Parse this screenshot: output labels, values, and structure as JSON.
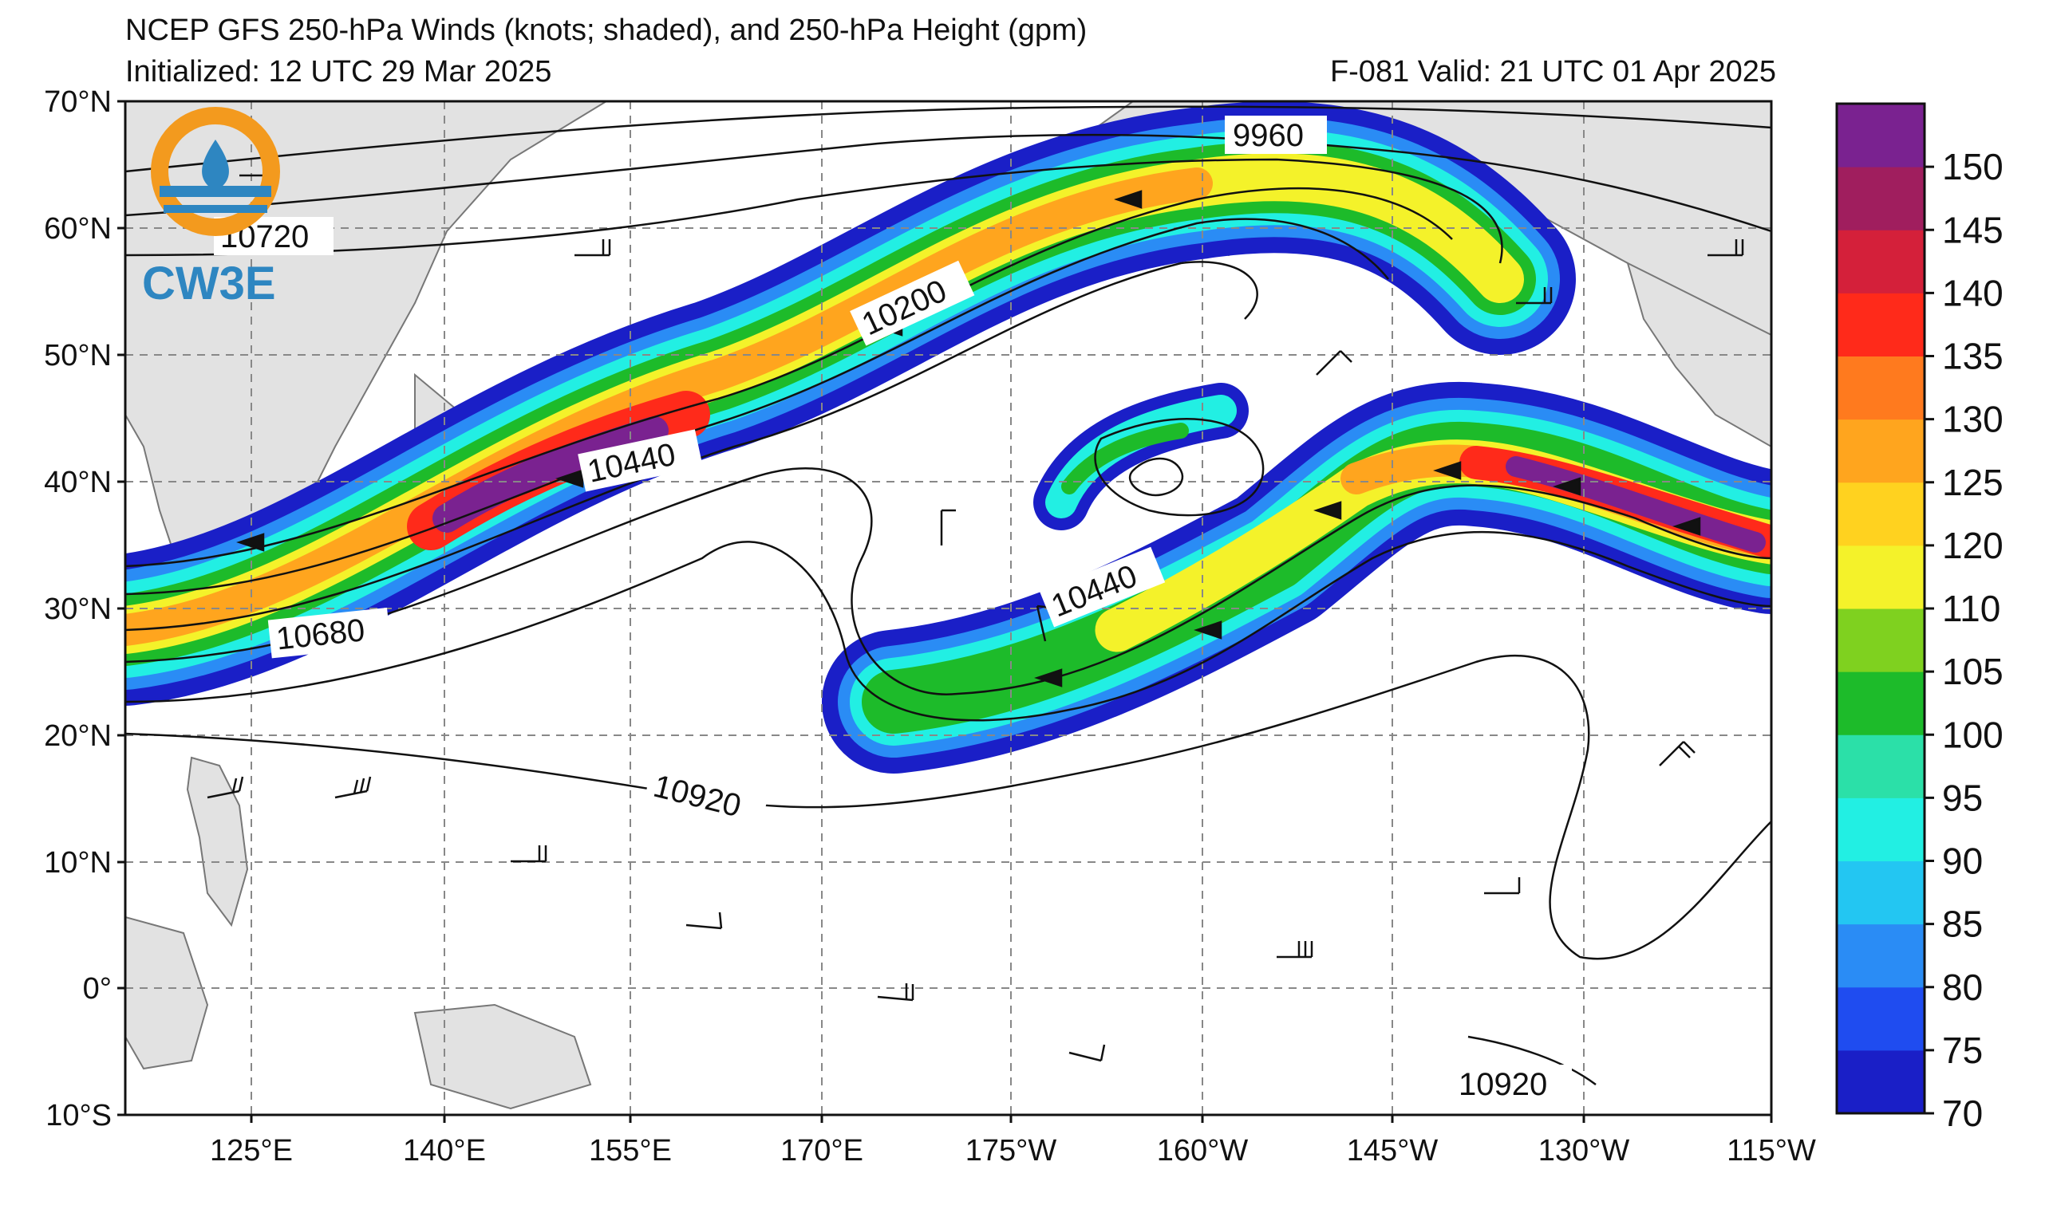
{
  "header": {
    "title": "NCEP GFS 250-hPa Winds (knots; shaded), and 250-hPa Height (gpm)",
    "initialized": "Initialized: 12 UTC 29 Mar 2025",
    "valid": "F-081  Valid: 21 UTC 01 Apr 2025"
  },
  "logo": {
    "text": "CW3E",
    "ring_color": "#f39a1e",
    "blue": "#2e86c1"
  },
  "map": {
    "lat_labels": [
      "70°N",
      "60°N",
      "50°N",
      "40°N",
      "30°N",
      "20°N",
      "10°N",
      "0°",
      "10°S"
    ],
    "lon_labels": [
      "125°E",
      "140°E",
      "155°E",
      "170°E",
      "175°W",
      "160°W",
      "145°W",
      "130°W",
      "115°W"
    ],
    "contour_labels": [
      {
        "text": "9960"
      },
      {
        "text": "10720"
      },
      {
        "text": "10200"
      },
      {
        "text": "10440"
      },
      {
        "text": "10440"
      },
      {
        "text": "10680"
      },
      {
        "text": "10920"
      },
      {
        "text": "10920"
      }
    ]
  },
  "colorbar": {
    "ticks": [
      "70",
      "75",
      "80",
      "85",
      "90",
      "95",
      "100",
      "105",
      "110",
      "120",
      "125",
      "130",
      "135",
      "140",
      "145",
      "150"
    ],
    "colors": [
      "#1a1fc7",
      "#1f4cf0",
      "#2a8cf5",
      "#23c6f2",
      "#22efe3",
      "#2be0a8",
      "#1dbb2a",
      "#7fd11f",
      "#f4f22a",
      "#ffd21f",
      "#ffa51e",
      "#ff7a1e",
      "#ff2a1a",
      "#d4203a",
      "#a01e5e",
      "#7a2290"
    ]
  }
}
